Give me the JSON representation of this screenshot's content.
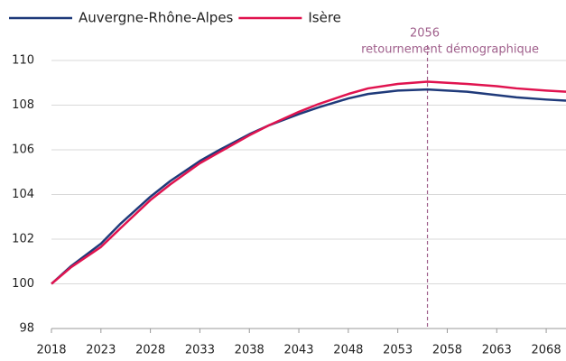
{
  "chart_data": {
    "type": "line",
    "x": [
      2018,
      2020,
      2023,
      2025,
      2028,
      2030,
      2033,
      2035,
      2038,
      2040,
      2043,
      2045,
      2048,
      2050,
      2053,
      2056,
      2058,
      2060,
      2063,
      2065,
      2068,
      2070
    ],
    "series": [
      {
        "name": "Auvergne-Rhône-Alpes",
        "color": "#1f3a7a",
        "values": [
          100,
          100.8,
          101.8,
          102.7,
          103.9,
          104.6,
          105.5,
          106.0,
          106.7,
          107.1,
          107.6,
          107.9,
          108.3,
          108.5,
          108.65,
          108.7,
          108.65,
          108.6,
          108.45,
          108.35,
          108.25,
          108.2
        ]
      },
      {
        "name": "Isère",
        "color": "#e0134f",
        "values": [
          100,
          100.75,
          101.65,
          102.5,
          103.75,
          104.45,
          105.4,
          105.9,
          106.65,
          107.1,
          107.7,
          108.05,
          108.5,
          108.75,
          108.95,
          109.05,
          109.0,
          108.95,
          108.85,
          108.75,
          108.65,
          108.6
        ]
      }
    ],
    "xlim": [
      2018,
      2070
    ],
    "xticks": [
      2018,
      2023,
      2028,
      2033,
      2038,
      2043,
      2048,
      2053,
      2058,
      2063,
      2068
    ],
    "ylim": [
      98,
      110
    ],
    "yticks": [
      98,
      100,
      102,
      104,
      106,
      108,
      110
    ],
    "grid": true,
    "annotation": {
      "x": 2056,
      "label": "2056",
      "text": "retournement démographique",
      "color": "#a0608c"
    }
  }
}
